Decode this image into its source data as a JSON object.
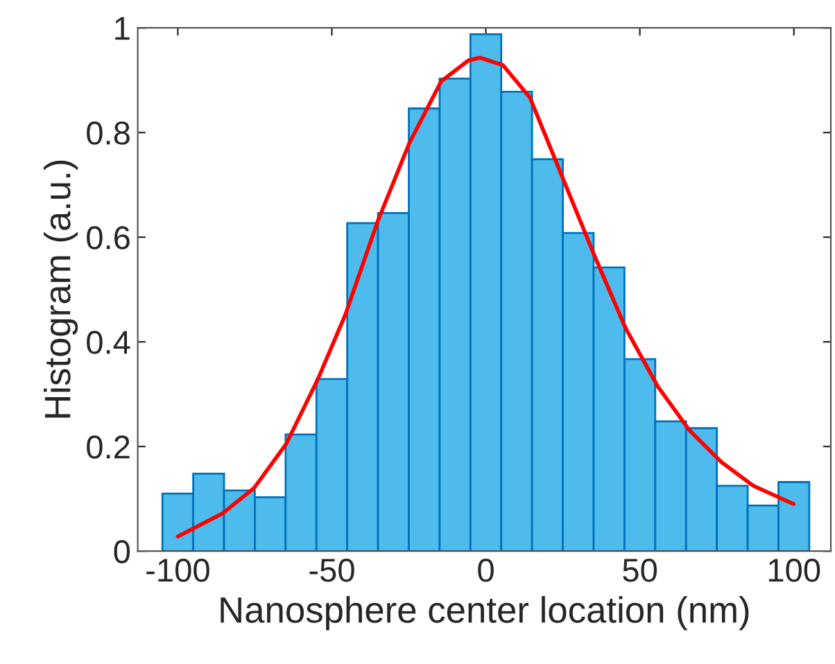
{
  "chart_data": {
    "type": "histogram",
    "xlabel": "Nanosphere center location (nm)",
    "ylabel": "Histogram (a.u.)",
    "bins": [
      -105,
      -95,
      -85,
      -75,
      -65,
      -55,
      -45,
      -35,
      -25,
      -15,
      -5,
      5,
      15,
      25,
      35,
      45,
      55,
      65,
      75,
      85,
      95,
      105
    ],
    "values": [
      0.11,
      0.148,
      0.116,
      0.103,
      0.223,
      0.329,
      0.627,
      0.646,
      0.846,
      0.903,
      0.988,
      0.878,
      0.749,
      0.608,
      0.542,
      0.367,
      0.248,
      0.235,
      0.125,
      0.087,
      0.132
    ],
    "color": "#4dbbeb",
    "series": [
      {
        "type": "line",
        "color": "#ff0000",
        "x": [
          -100,
          -85.5,
          -75.2,
          -64.8,
          -54.5,
          -45.6,
          -35.2,
          -24.9,
          -14.5,
          -5.6,
          -1.9,
          5.5,
          14.3,
          24.7,
          35.1,
          45.4,
          55.8,
          66.1,
          76.5,
          86.8,
          99.9
        ],
        "values": [
          0.028,
          0.072,
          0.121,
          0.205,
          0.329,
          0.452,
          0.629,
          0.779,
          0.898,
          0.938,
          0.943,
          0.929,
          0.867,
          0.717,
          0.567,
          0.426,
          0.315,
          0.231,
          0.17,
          0.125,
          0.09
        ]
      }
    ],
    "xlim": [
      -113,
      112
    ],
    "ylim": [
      0,
      1
    ],
    "xticks": [
      -100,
      -50,
      0,
      50,
      100
    ],
    "yticks": [
      0,
      0.2,
      0.4,
      0.6,
      0.8,
      1
    ],
    "grid": false,
    "legend": false
  }
}
